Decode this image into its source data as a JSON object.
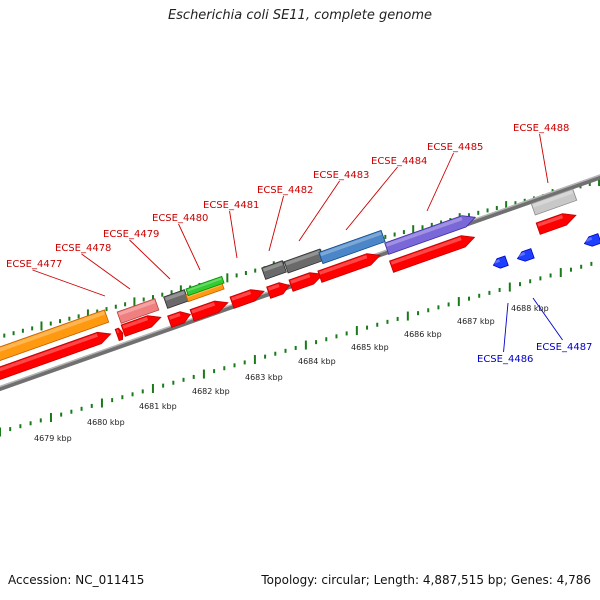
{
  "title": "Escherichia coli SE11, complete genome",
  "footer": {
    "accession": "Accession: NC_011415",
    "summary": "Topology: circular; Length: 4,887,515 bp; Genes: 4,786"
  },
  "colors": {
    "forward_label": "#cc0000",
    "reverse_label": "#0000cc",
    "tick": "#1a7a1a",
    "backbone": "#8a8a8a",
    "cds": "#ff0000",
    "reverse_cds": "#1f3fff"
  },
  "scale_labels": [
    "4679 kbp",
    "4680 kbp",
    "4681 kbp",
    "4682 kbp",
    "4683 kbp",
    "4684 kbp",
    "4685 kbp",
    "4686 kbp",
    "4687 kbp",
    "4688 kbp"
  ],
  "gene_labels": {
    "forward": [
      "ECSE_4477",
      "ECSE_4478",
      "ECSE_4479",
      "ECSE_4480",
      "ECSE_4481",
      "ECSE_4482",
      "ECSE_4483",
      "ECSE_4484",
      "ECSE_4485",
      "ECSE_4488"
    ],
    "reverse": [
      "ECSE_4486",
      "ECSE_4487"
    ]
  }
}
